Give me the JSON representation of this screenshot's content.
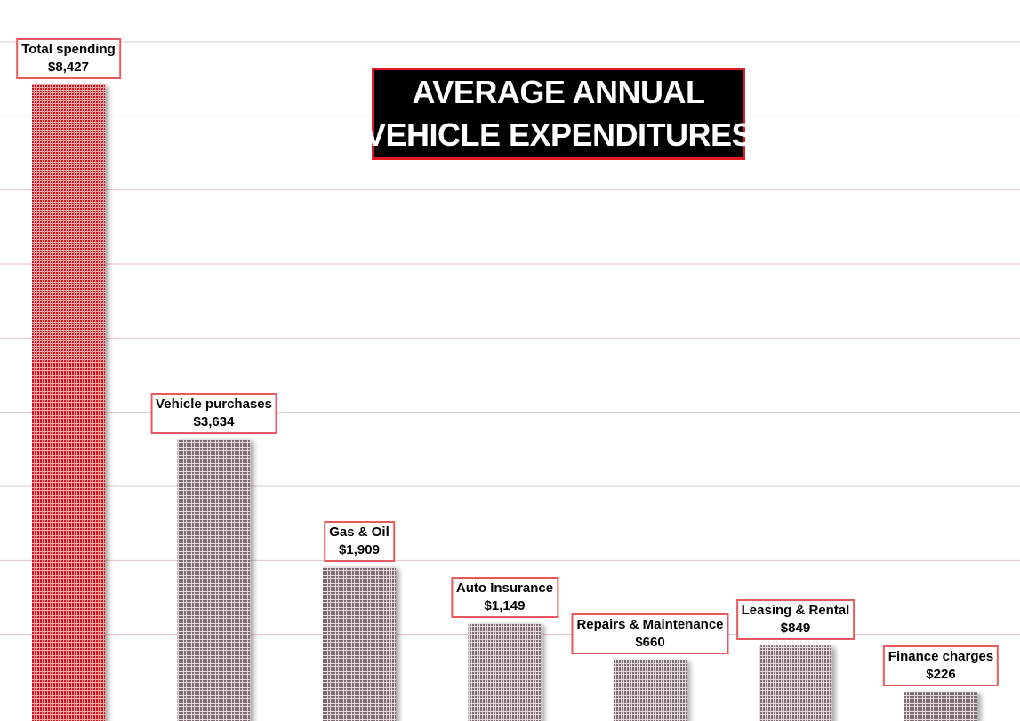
{
  "chart_data": {
    "type": "bar",
    "title": [
      "AVERAGE ANNUAL",
      "VEHICLE EXPENDITURES"
    ],
    "categories": [
      "Total spending",
      "Vehicle purchases",
      "Gas & Oil",
      "Auto Insurance",
      "Repairs & Maintenance",
      "Leasing & Rental",
      "Finance charges"
    ],
    "values": [
      8427,
      3634,
      1909,
      1149,
      660,
      849,
      226
    ],
    "value_labels": [
      "$8,427",
      "$3,634",
      "$1,909",
      "$1,149",
      "$660",
      "$849",
      "$226"
    ],
    "ylim": [
      0,
      9000
    ],
    "grid": true,
    "colors": {
      "highlight": "#e31b23",
      "bars": "#a08a8e",
      "gridline": "#e2c4c7",
      "label_border": "#e8595f"
    },
    "bar_pattern": "dotted"
  }
}
